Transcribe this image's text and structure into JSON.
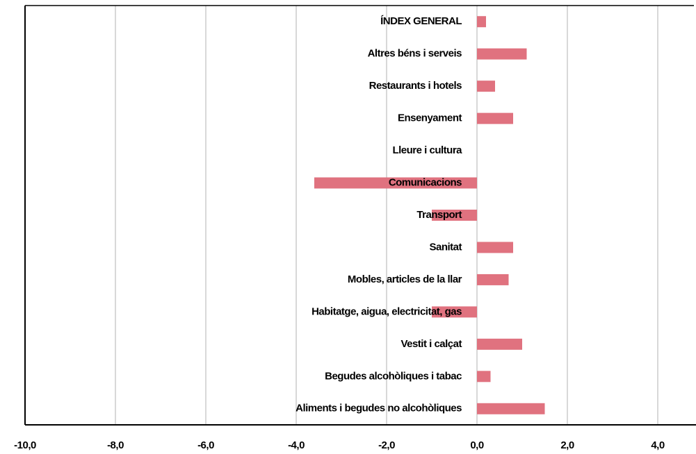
{
  "chart_data": {
    "type": "bar",
    "orientation": "horizontal",
    "categories": [
      "ÍNDEX GENERAL",
      "Altres béns i serveis",
      "Restaurants i hotels",
      "Ensenyament",
      "Lleure i cultura",
      "Comunicacions",
      "Transport",
      "Sanitat",
      "Mobles, articles de la llar",
      "Habitatge, aigua, electricitat, gas",
      "Vestit i calçat",
      "Begudes alcohòliques i tabac",
      "Aliments i begudes no alcohòliques"
    ],
    "values": [
      0.2,
      1.1,
      0.4,
      0.8,
      0,
      -3.6,
      -1.0,
      0.8,
      0.7,
      -1.0,
      1.0,
      0.3,
      1.5
    ],
    "color": "#e0727f",
    "xlim": [
      -10,
      4.8
    ],
    "xticks": [
      {
        "value": -10,
        "label": "-10,0"
      },
      {
        "value": -8,
        "label": "-8,0"
      },
      {
        "value": -6,
        "label": "-6,0"
      },
      {
        "value": -4,
        "label": "-4,0"
      },
      {
        "value": -2,
        "label": "-2,0"
      },
      {
        "value": 0,
        "label": "0,0"
      },
      {
        "value": 2,
        "label": "2,0"
      },
      {
        "value": 4,
        "label": "4,0"
      }
    ],
    "grid": true
  }
}
